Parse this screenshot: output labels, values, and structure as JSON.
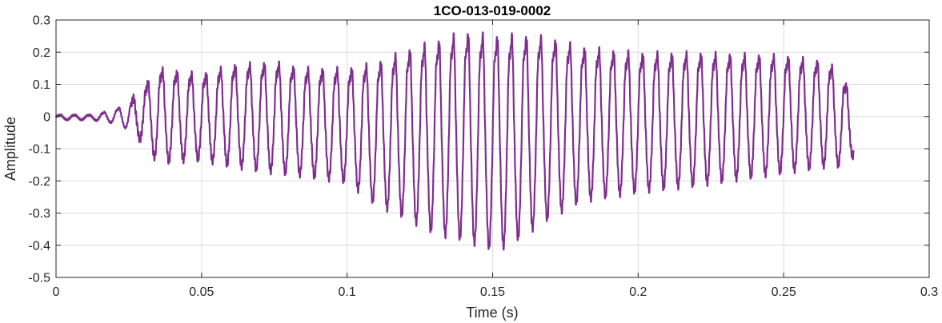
{
  "chart_data": {
    "type": "line",
    "title": "1CO-013-019-0002",
    "xlabel": "Time (s)",
    "ylabel": "Amplitude",
    "xlim": [
      0,
      0.3
    ],
    "ylim": [
      -0.5,
      0.3
    ],
    "xticks": [
      0,
      0.05,
      0.1,
      0.15,
      0.2,
      0.25,
      0.3
    ],
    "xtick_labels": [
      "0",
      "0.05",
      "0.1",
      "0.15",
      "0.2",
      "0.25",
      "0.3"
    ],
    "yticks": [
      -0.5,
      -0.4,
      -0.3,
      -0.2,
      -0.1,
      0,
      0.1,
      0.2,
      0.3
    ],
    "ytick_labels": [
      "-0.5",
      "-0.4",
      "-0.3",
      "-0.2",
      "-0.1",
      "0",
      "0.1",
      "0.2",
      "0.3"
    ],
    "grid": true,
    "line_color": "#7E2F8E",
    "series": [
      {
        "signal_duration": 0.274,
        "fundamental_hz": 200,
        "envelope_t": [
          0,
          0.012,
          0.02,
          0.025,
          0.03,
          0.035,
          0.05,
          0.06,
          0.075,
          0.085,
          0.1,
          0.11,
          0.12,
          0.13,
          0.14,
          0.15,
          0.155,
          0.16,
          0.17,
          0.18,
          0.2,
          0.22,
          0.25,
          0.265,
          0.27,
          0.274
        ],
        "envelope_pos": [
          0.005,
          0.005,
          0.02,
          0.045,
          0.09,
          0.15,
          0.13,
          0.16,
          0.17,
          0.15,
          0.15,
          0.17,
          0.21,
          0.24,
          0.27,
          0.26,
          0.26,
          0.26,
          0.25,
          0.22,
          0.2,
          0.2,
          0.19,
          0.17,
          0.13,
          0.05
        ],
        "envelope_neg": [
          -0.01,
          -0.01,
          -0.02,
          -0.04,
          -0.08,
          -0.14,
          -0.13,
          -0.15,
          -0.17,
          -0.18,
          -0.2,
          -0.27,
          -0.31,
          -0.36,
          -0.38,
          -0.41,
          -0.4,
          -0.37,
          -0.31,
          -0.26,
          -0.23,
          -0.21,
          -0.17,
          -0.15,
          -0.15,
          -0.12
        ]
      }
    ]
  }
}
